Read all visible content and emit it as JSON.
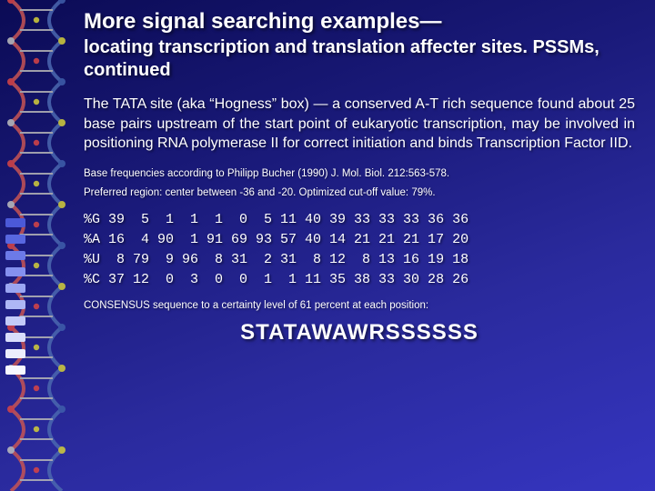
{
  "title_line1": "More signal searching examples—",
  "title_line2": "locating transcription and translation affecter sites. PSSMs, continued",
  "paragraph": "The TATA site (aka “Hogness” box) — a conserved A-T rich sequence found about 25 base pairs upstream of the start point of eukaryotic transcription, may be involved in positioning RNA polymerase II for correct initiation and binds Transcription Factor IID.",
  "note1": "Base frequencies according to Philipp Bucher (1990) J. Mol. Biol. 212:563-578.",
  "note2": "Preferred region:  center between -36 and -20.  Optimized cut-off value:  79%.",
  "freq_table": {
    "rows": [
      {
        "label": "%G",
        "values": [
          39,
          5,
          1,
          1,
          1,
          0,
          5,
          11,
          40,
          39,
          33,
          33,
          33,
          36,
          36
        ]
      },
      {
        "label": "%A",
        "values": [
          16,
          4,
          90,
          1,
          91,
          69,
          93,
          57,
          40,
          14,
          21,
          21,
          21,
          17,
          20
        ]
      },
      {
        "label": "%U",
        "values": [
          8,
          79,
          9,
          96,
          8,
          31,
          2,
          31,
          8,
          12,
          8,
          13,
          16,
          19,
          18
        ]
      },
      {
        "label": "%C",
        "values": [
          37,
          12,
          0,
          3,
          0,
          0,
          1,
          1,
          11,
          35,
          38,
          33,
          30,
          28,
          26
        ]
      }
    ]
  },
  "consensus_label": "CONSENSUS sequence to a certainty level of 61 percent at each position:",
  "consensus": "STATAWAWRSSSSSS",
  "bullets": {
    "colors": [
      "#4b59d9",
      "#5867e0",
      "#6c7ae8",
      "#8490ee",
      "#9ba6f2",
      "#aeb7f5",
      "#c3caf8",
      "#d9ddfb",
      "#eceefd",
      "#f8f8ff"
    ]
  },
  "helix": {
    "strand_colors": [
      "#c75454",
      "#4b68b0"
    ],
    "atom_colors": [
      "#d94545",
      "#3f5fab",
      "#d4cf3a",
      "#bfbfbf"
    ]
  }
}
